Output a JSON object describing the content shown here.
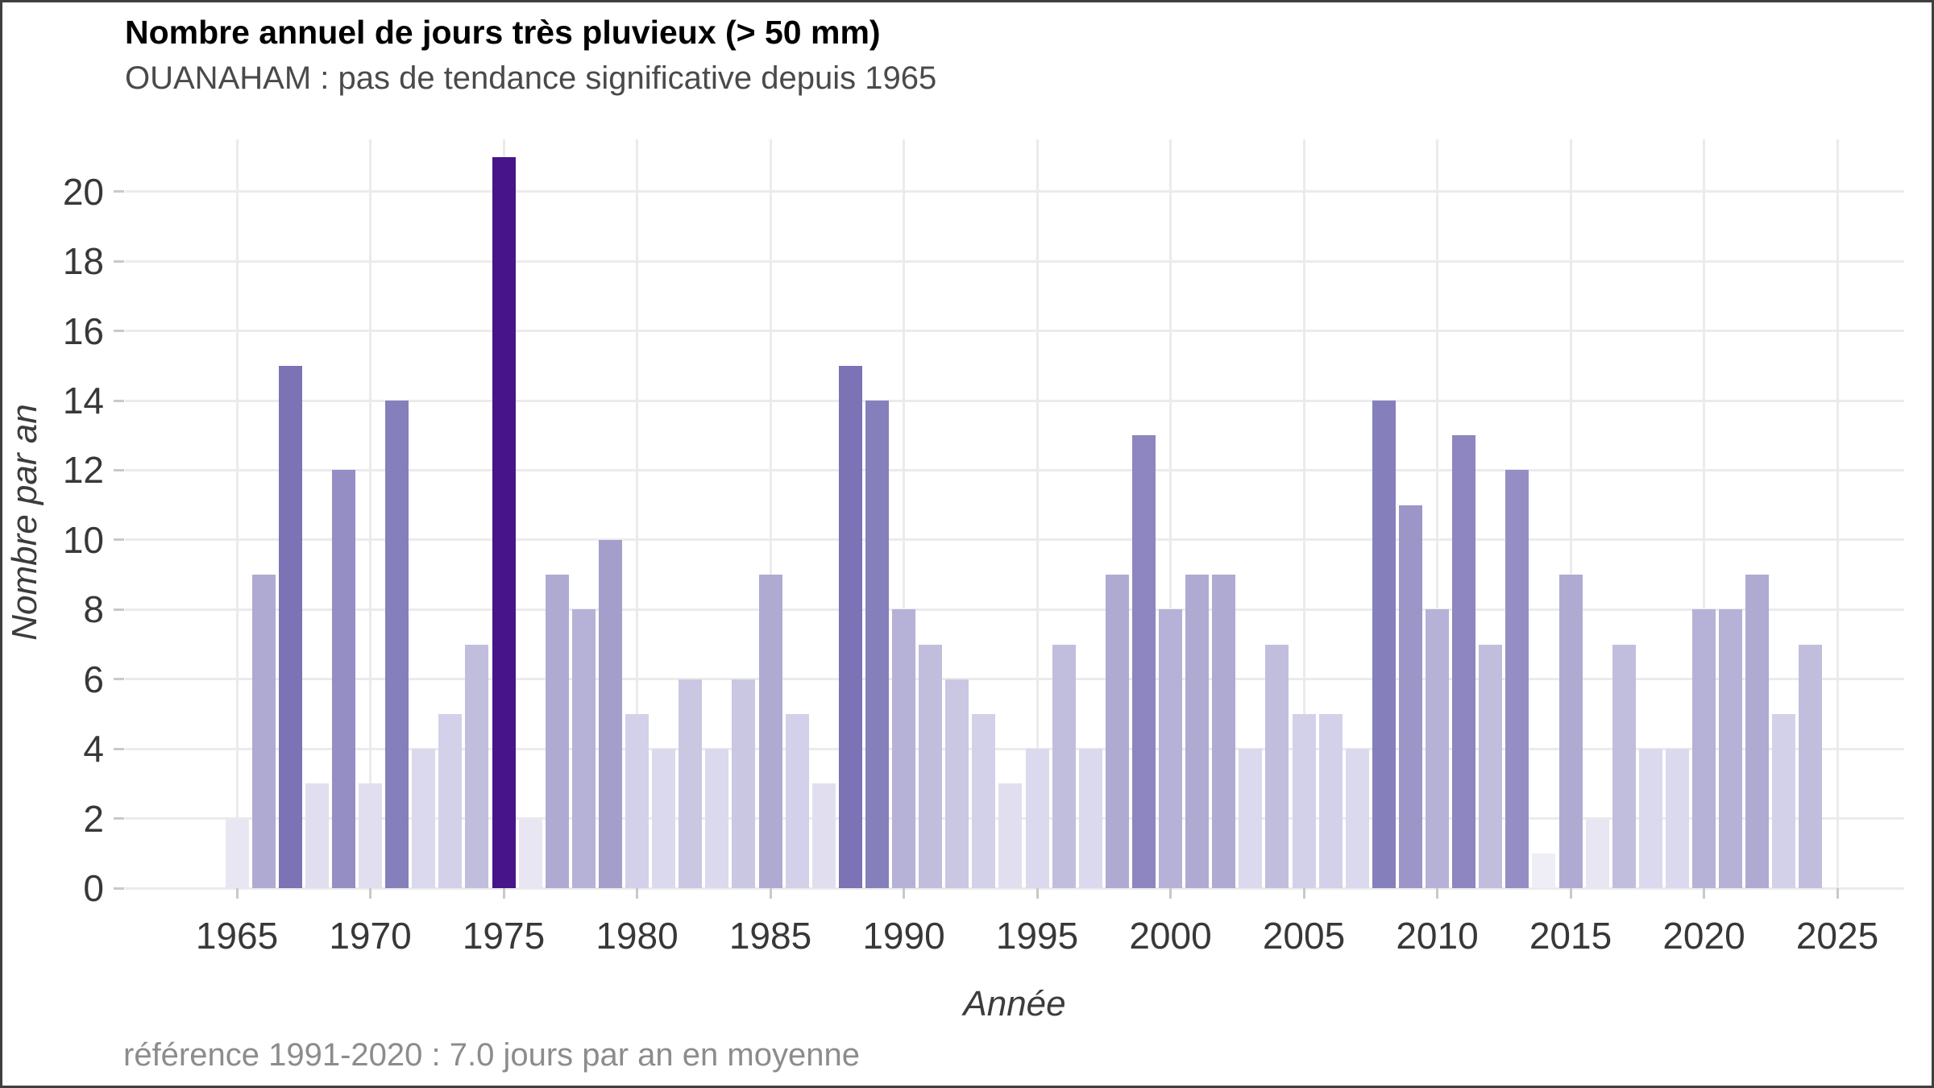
{
  "header": {
    "title": "Nombre annuel de jours très pluvieux (> 50 mm)",
    "subtitle": "OUANAHAM : pas de tendance significative depuis 1965"
  },
  "footer": {
    "caption": "référence 1991-2020 : 7.0 jours par an en moyenne"
  },
  "chart_data": {
    "type": "bar",
    "title": "Nombre annuel de jours très pluvieux (> 50 mm)",
    "subtitle": "OUANAHAM : pas de tendance significative depuis 1965",
    "xlabel": "Année",
    "ylabel": "Nombre par an",
    "caption": "référence 1991-2020 : 7.0 jours par an en moyenne",
    "x": [
      1965,
      1966,
      1967,
      1968,
      1969,
      1970,
      1971,
      1972,
      1973,
      1974,
      1975,
      1976,
      1977,
      1978,
      1979,
      1980,
      1981,
      1982,
      1983,
      1984,
      1985,
      1986,
      1987,
      1988,
      1989,
      1990,
      1991,
      1992,
      1993,
      1994,
      1995,
      1996,
      1997,
      1998,
      1999,
      2000,
      2001,
      2002,
      2003,
      2004,
      2005,
      2006,
      2007,
      2008,
      2009,
      2010,
      2011,
      2012,
      2013,
      2014,
      2015,
      2016,
      2017,
      2018,
      2019,
      2020,
      2021,
      2022,
      2023,
      2024
    ],
    "values": [
      2,
      9,
      15,
      3,
      12,
      3,
      14,
      4,
      5,
      7,
      21,
      2,
      9,
      8,
      10,
      5,
      4,
      6,
      4,
      6,
      9,
      5,
      3,
      15,
      14,
      8,
      7,
      6,
      5,
      3,
      4,
      7,
      4,
      9,
      13,
      8,
      9,
      9,
      4,
      7,
      5,
      5,
      4,
      14,
      11,
      8,
      13,
      7,
      12,
      1,
      9,
      2,
      7,
      4,
      4,
      8,
      8,
      9,
      5,
      7
    ],
    "yticks": [
      0,
      2,
      4,
      6,
      8,
      10,
      12,
      14,
      16,
      18,
      20
    ],
    "xticks": [
      1965,
      1970,
      1975,
      1980,
      1985,
      1990,
      1995,
      2000,
      2005,
      2010,
      2015,
      2020,
      2025
    ],
    "ylim": [
      0,
      21.5
    ],
    "xlim": [
      1960.8,
      2027.5
    ],
    "grid": true,
    "legend": "none",
    "reference_mean_1991_2020": 7.0,
    "value_colors": {
      "1": "#efeef6",
      "2": "#e8e6f2",
      "3": "#e1dfef",
      "4": "#dbd9ed",
      "5": "#d3d1e9",
      "6": "#cac7e3",
      "7": "#c1bedd",
      "8": "#b6b1d6",
      "9": "#afaad2",
      "10": "#a49ecb",
      "11": "#9c96c8",
      "12": "#958ec4",
      "13": "#8d86c0",
      "14": "#8580bb",
      "15": "#7b73b5",
      "21": "#471589"
    },
    "colors": {
      "gridline": "#ebebeb",
      "tick": "#c9c9c9",
      "tick_label": "#383838",
      "title": "#000000",
      "subtitle": "#4a4a4a",
      "axis_title": "#3c3c3c",
      "caption": "#8c8c8c",
      "background": "#ffffff",
      "frame_border": "#3f3f3f"
    }
  }
}
